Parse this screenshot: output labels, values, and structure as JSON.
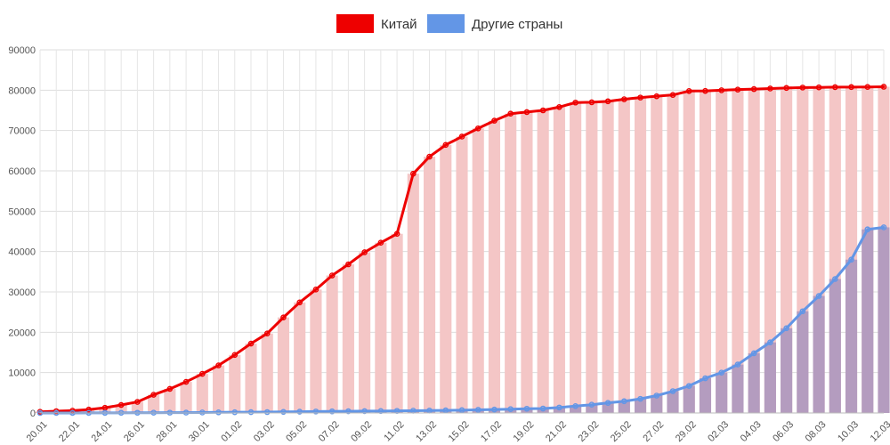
{
  "chart_data": {
    "type": "line",
    "title": "",
    "xlabel": "",
    "ylabel": "",
    "ylim": [
      0,
      90000
    ],
    "yticks": [
      0,
      10000,
      20000,
      30000,
      40000,
      50000,
      60000,
      70000,
      80000,
      90000
    ],
    "grid": true,
    "legend_position": "top-center",
    "categories": [
      "20.01",
      "21.01",
      "22.01",
      "23.01",
      "24.01",
      "25.01",
      "26.01",
      "27.01",
      "28.01",
      "29.01",
      "30.01",
      "31.01",
      "01.02",
      "02.02",
      "03.02",
      "04.02",
      "05.02",
      "06.02",
      "07.02",
      "08.02",
      "09.02",
      "10.02",
      "11.02",
      "12.02",
      "13.02",
      "14.02",
      "15.02",
      "16.02",
      "17.02",
      "18.02",
      "19.02",
      "20.02",
      "21.02",
      "22.02",
      "23.02",
      "24.02",
      "25.02",
      "26.02",
      "27.02",
      "28.02",
      "29.02",
      "01.03",
      "02.03",
      "03.03",
      "04.03",
      "05.03",
      "06.03",
      "07.03",
      "08.03",
      "09.03",
      "10.03",
      "11.03",
      "12.03"
    ],
    "xtick_labels": [
      "20.01",
      "22.01",
      "24.01",
      "26.01",
      "28.01",
      "30.01",
      "01.02",
      "03.02",
      "05.02",
      "07.02",
      "09.02",
      "11.02",
      "13.02",
      "15.02",
      "17.02",
      "19.02",
      "21.02",
      "23.02",
      "25.02",
      "27.02",
      "29.02",
      "02.03",
      "04.03",
      "06.03",
      "08.03",
      "10.03",
      "12.03"
    ],
    "series": [
      {
        "name": "Китай",
        "color": "#ee0000",
        "bar_color": "#f4c6c6",
        "values": [
          290,
          440,
          570,
          830,
          1290,
          1980,
          2740,
          4510,
          5970,
          7710,
          9690,
          11790,
          14380,
          17200,
          19700,
          23680,
          27400,
          30590,
          34070,
          36840,
          39820,
          42200,
          44400,
          59300,
          63520,
          66430,
          68500,
          70530,
          72440,
          74180,
          74580,
          75000,
          75820,
          76930,
          77000,
          77240,
          77750,
          78170,
          78490,
          78820,
          79790,
          79820,
          79980,
          80150,
          80270,
          80410,
          80550,
          80650,
          80690,
          80750,
          80770,
          80800,
          80850
        ]
      },
      {
        "name": "Другие страны",
        "color": "#6396e6",
        "bar_color": "#b49cbf",
        "values": [
          4,
          7,
          12,
          18,
          23,
          40,
          56,
          66,
          80,
          90,
          120,
          160,
          180,
          200,
          220,
          270,
          310,
          360,
          390,
          420,
          460,
          480,
          520,
          560,
          600,
          640,
          700,
          780,
          850,
          950,
          1050,
          1100,
          1350,
          1700,
          2050,
          2500,
          2900,
          3500,
          4300,
          5400,
          6700,
          8600,
          10000,
          12000,
          14800,
          17500,
          21000,
          25200,
          29000,
          33200,
          38000,
          45500,
          46000
        ]
      }
    ]
  }
}
